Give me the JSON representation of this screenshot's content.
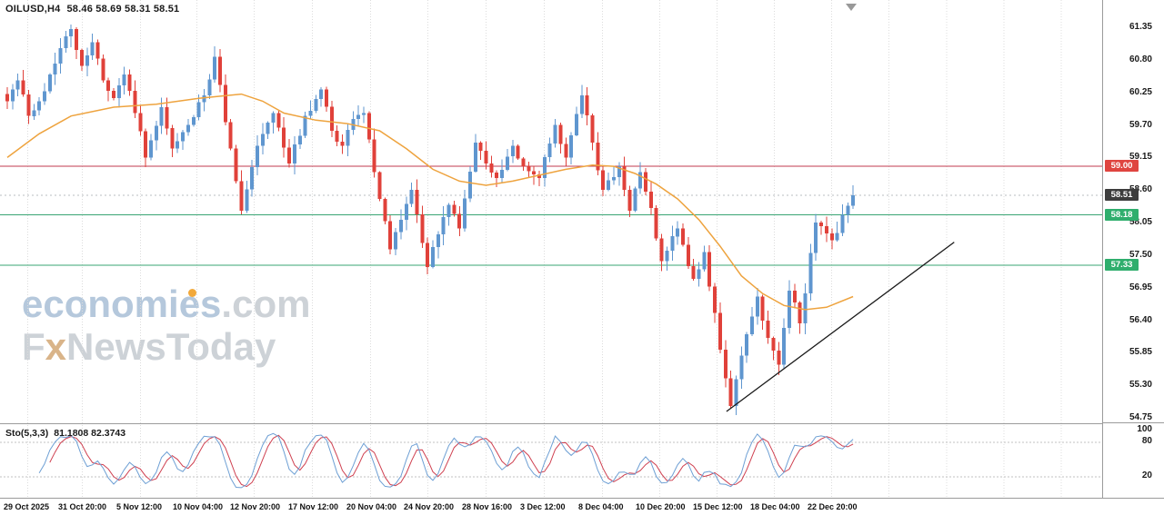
{
  "header": {
    "symbol_period": "OILUSD,H4",
    "quote": "58.46 58.69 58.31 58.51"
  },
  "watermark": {
    "brand": "economies",
    "suffix": ".com",
    "line2_f": "F",
    "line2_x": "x",
    "line2_rest": "NewsToday"
  },
  "stochastic_header": {
    "name": "Sto(5,3,3)",
    "values": "81.1808 82.3743"
  },
  "chart_data": {
    "type": "candlestick",
    "symbol": "OILUSD",
    "timeframe": "H4",
    "last_quote": {
      "open": 58.46,
      "high": 58.69,
      "low": 58.31,
      "close": 58.51
    },
    "candle_count": 160,
    "y_axis": {
      "ymin": 54.66,
      "ymax": 61.81,
      "ticks": [
        "61.35",
        "60.80",
        "60.25",
        "59.70",
        "59.15",
        "58.60",
        "58.05",
        "57.50",
        "56.95",
        "56.40",
        "55.85",
        "55.30",
        "54.75"
      ]
    },
    "x_axis": {
      "labels": [
        [
          "29 Oct 2025",
          4
        ],
        [
          "31 Oct 20:00",
          64
        ],
        [
          "5 Nov 12:00",
          128
        ],
        [
          "10 Nov 04:00",
          190
        ],
        [
          "12 Nov 20:00",
          253
        ],
        [
          "17 Nov 12:00",
          317
        ],
        [
          "20 Nov 04:00",
          381
        ],
        [
          "24 Nov 20:00",
          444
        ],
        [
          "28 Nov 16:00",
          508
        ],
        [
          "3 Dec 12:00",
          572
        ],
        [
          "8 Dec 04:00",
          636
        ],
        [
          "10 Dec 20:00",
          699
        ],
        [
          "15 Dec 12:00",
          762
        ],
        [
          "18 Dec 04:00",
          825
        ],
        [
          "22 Dec 20:00",
          888
        ]
      ]
    },
    "price_pivots": [
      [
        0,
        60.1
      ],
      [
        2,
        60.45
      ],
      [
        4,
        59.85
      ],
      [
        6,
        60.1
      ],
      [
        8,
        60.55
      ],
      [
        10,
        61.0
      ],
      [
        12,
        61.32
      ],
      [
        14,
        60.7
      ],
      [
        16,
        61.1
      ],
      [
        18,
        60.45
      ],
      [
        20,
        60.15
      ],
      [
        22,
        60.55
      ],
      [
        24,
        59.9
      ],
      [
        26,
        59.15
      ],
      [
        29,
        60.0
      ],
      [
        31,
        59.3
      ],
      [
        34,
        59.7
      ],
      [
        37,
        60.2
      ],
      [
        39,
        60.85
      ],
      [
        42,
        59.3
      ],
      [
        44,
        58.25
      ],
      [
        47,
        59.35
      ],
      [
        50,
        59.9
      ],
      [
        53,
        59.05
      ],
      [
        56,
        59.85
      ],
      [
        59,
        60.3
      ],
      [
        61,
        59.6
      ],
      [
        63,
        59.35
      ],
      [
        65,
        59.8
      ],
      [
        67,
        59.9
      ],
      [
        69,
        58.9
      ],
      [
        72,
        57.6
      ],
      [
        74,
        58.1
      ],
      [
        76,
        58.6
      ],
      [
        79,
        57.3
      ],
      [
        81,
        57.85
      ],
      [
        83,
        58.35
      ],
      [
        85,
        57.95
      ],
      [
        88,
        59.4
      ],
      [
        90,
        59.05
      ],
      [
        92,
        58.8
      ],
      [
        95,
        59.35
      ],
      [
        97,
        59.0
      ],
      [
        100,
        58.8
      ],
      [
        103,
        59.7
      ],
      [
        105,
        59.15
      ],
      [
        108,
        60.2
      ],
      [
        110,
        59.4
      ],
      [
        112,
        58.6
      ],
      [
        115,
        59.0
      ],
      [
        117,
        58.25
      ],
      [
        119,
        58.9
      ],
      [
        121,
        58.3
      ],
      [
        123,
        57.4
      ],
      [
        126,
        57.95
      ],
      [
        129,
        57.1
      ],
      [
        131,
        57.55
      ],
      [
        134,
        55.9
      ],
      [
        136,
        54.95
      ],
      [
        138,
        55.8
      ],
      [
        141,
        56.8
      ],
      [
        143,
        56.1
      ],
      [
        145,
        55.65
      ],
      [
        147,
        56.9
      ],
      [
        149,
        56.35
      ],
      [
        152,
        58.05
      ],
      [
        155,
        57.75
      ],
      [
        159,
        58.51
      ]
    ],
    "ma_pivots": [
      [
        0,
        59.15
      ],
      [
        6,
        59.55
      ],
      [
        12,
        59.85
      ],
      [
        20,
        60.0
      ],
      [
        28,
        60.05
      ],
      [
        36,
        60.15
      ],
      [
        44,
        60.22
      ],
      [
        48,
        60.1
      ],
      [
        52,
        59.9
      ],
      [
        58,
        59.78
      ],
      [
        64,
        59.72
      ],
      [
        70,
        59.6
      ],
      [
        75,
        59.3
      ],
      [
        80,
        58.95
      ],
      [
        85,
        58.75
      ],
      [
        90,
        58.68
      ],
      [
        95,
        58.75
      ],
      [
        100,
        58.85
      ],
      [
        105,
        58.95
      ],
      [
        110,
        59.02
      ],
      [
        114,
        59.0
      ],
      [
        118,
        58.88
      ],
      [
        122,
        58.7
      ],
      [
        126,
        58.45
      ],
      [
        130,
        58.1
      ],
      [
        134,
        57.65
      ],
      [
        138,
        57.15
      ],
      [
        142,
        56.85
      ],
      [
        146,
        56.65
      ],
      [
        150,
        56.58
      ],
      [
        154,
        56.62
      ],
      [
        159,
        56.8
      ]
    ],
    "levels": [
      {
        "price": 59.0,
        "label": "59.00",
        "line": "#c13b4f",
        "badge": "#df4540"
      },
      {
        "price": 58.18,
        "label": "58.18",
        "line": "#3aa473",
        "badge": "#2fae6d"
      },
      {
        "price": 57.33,
        "label": "57.33",
        "line": "#3aa473",
        "badge": "#2fae6d"
      }
    ],
    "current_price": {
      "price": 58.51,
      "label": "58.51",
      "badge": "#3d3d3d"
    },
    "trendline": {
      "i1": 135.2,
      "p1": 54.86,
      "i2": 178,
      "p2": 57.72,
      "color": "#1a1a1a"
    },
    "stochastic": {
      "name": "Sto(5,3,3)",
      "period": 5,
      "slowing": 3,
      "signal": 3,
      "display_k": 81.1808,
      "display_d": 82.3743,
      "levels": [
        80,
        20
      ],
      "scale_labels": [
        [
          "100",
          100
        ],
        [
          "80",
          80
        ],
        [
          "20",
          20
        ]
      ],
      "k_color": "#6d9fd4",
      "d_color": "#cf4050"
    },
    "colors": {
      "up": "#5f96cf",
      "down": "#e0413a",
      "ma": "#eea33e",
      "grid": "#dcdcdc",
      "bid_dash": "#b8bcc0"
    }
  }
}
